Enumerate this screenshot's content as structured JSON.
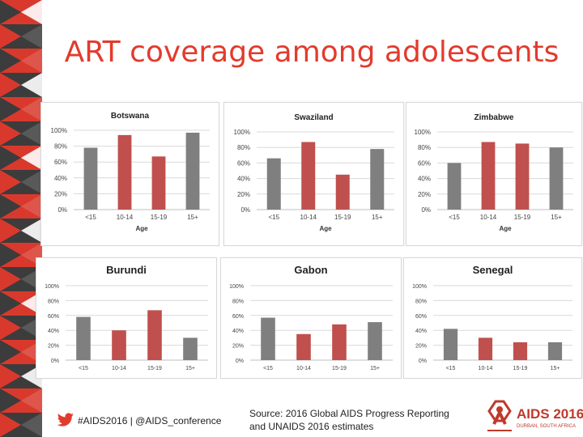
{
  "slide": {
    "title": "ART coverage among adolescents",
    "hashtag": "#AIDS2016 | @AIDS_conference",
    "source_line1": "Source: 2016 Global AIDS Progress Reporting",
    "source_line2": "and UNAIDS 2016 estimates",
    "logo_text": "AIDS 2016",
    "logo_subtext": "DURBAN, SOUTH AFRICA"
  },
  "colors": {
    "accent": "#e23b2e",
    "strip_dark": "#3c3c3c",
    "strip_red": "#d9392c",
    "bar_gray": "#7f7f7f",
    "bar_red": "#c0504d"
  },
  "icons": [
    "twitter-bird-icon",
    "aids-ribbon-logo-icon"
  ],
  "chart_data": [
    {
      "type": "bar",
      "title": "Botswana",
      "categories": [
        "<15",
        "10-14",
        "15-19",
        "15+"
      ],
      "values": [
        78,
        94,
        67,
        97
      ],
      "bar_colors": [
        "gray",
        "red",
        "red",
        "gray"
      ],
      "xlabel": "Age",
      "ylabel": "",
      "ylim": [
        0,
        100
      ],
      "yticks": [
        "0%",
        "20%",
        "40%",
        "60%",
        "80%",
        "100%"
      ],
      "grid": true
    },
    {
      "type": "bar",
      "title": "Swaziland",
      "categories": [
        "<15",
        "10-14",
        "15-19",
        "15+"
      ],
      "values": [
        66,
        87,
        45,
        78
      ],
      "bar_colors": [
        "gray",
        "red",
        "red",
        "gray"
      ],
      "xlabel": "Age",
      "ylabel": "",
      "ylim": [
        0,
        100
      ],
      "yticks": [
        "0%",
        "20%",
        "40%",
        "60%",
        "80%",
        "100%"
      ],
      "grid": true
    },
    {
      "type": "bar",
      "title": "Zimbabwe",
      "categories": [
        "<15",
        "10-14",
        "15-19",
        "15+"
      ],
      "values": [
        60,
        87,
        85,
        80
      ],
      "bar_colors": [
        "gray",
        "red",
        "red",
        "gray"
      ],
      "xlabel": "Age",
      "ylabel": "",
      "ylim": [
        0,
        100
      ],
      "yticks": [
        "0%",
        "20%",
        "40%",
        "60%",
        "80%",
        "100%"
      ],
      "grid": true
    },
    {
      "type": "bar",
      "title": "Burundi",
      "categories": [
        "<15",
        "10-14",
        "15-19",
        "15+"
      ],
      "values": [
        58,
        40,
        67,
        30
      ],
      "bar_colors": [
        "gray",
        "red",
        "red",
        "gray"
      ],
      "xlabel": "",
      "ylabel": "",
      "ylim": [
        0,
        100
      ],
      "yticks": [
        "0%",
        "20%",
        "40%",
        "60%",
        "80%",
        "100%"
      ],
      "grid": true
    },
    {
      "type": "bar",
      "title": "Gabon",
      "categories": [
        "<15",
        "10-14",
        "15-19",
        "15+"
      ],
      "values": [
        57,
        35,
        48,
        51
      ],
      "bar_colors": [
        "gray",
        "red",
        "red",
        "gray"
      ],
      "xlabel": "",
      "ylabel": "",
      "ylim": [
        0,
        100
      ],
      "yticks": [
        "0%",
        "20%",
        "40%",
        "60%",
        "80%",
        "100%"
      ],
      "grid": true
    },
    {
      "type": "bar",
      "title": "Senegal",
      "categories": [
        "<15",
        "10-14",
        "15-19",
        "15+"
      ],
      "values": [
        42,
        30,
        24,
        24
      ],
      "bar_colors": [
        "gray",
        "red",
        "red",
        "gray"
      ],
      "xlabel": "",
      "ylabel": "",
      "ylim": [
        0,
        100
      ],
      "yticks": [
        "0%",
        "20%",
        "40%",
        "60%",
        "80%",
        "100%"
      ],
      "grid": true
    }
  ]
}
